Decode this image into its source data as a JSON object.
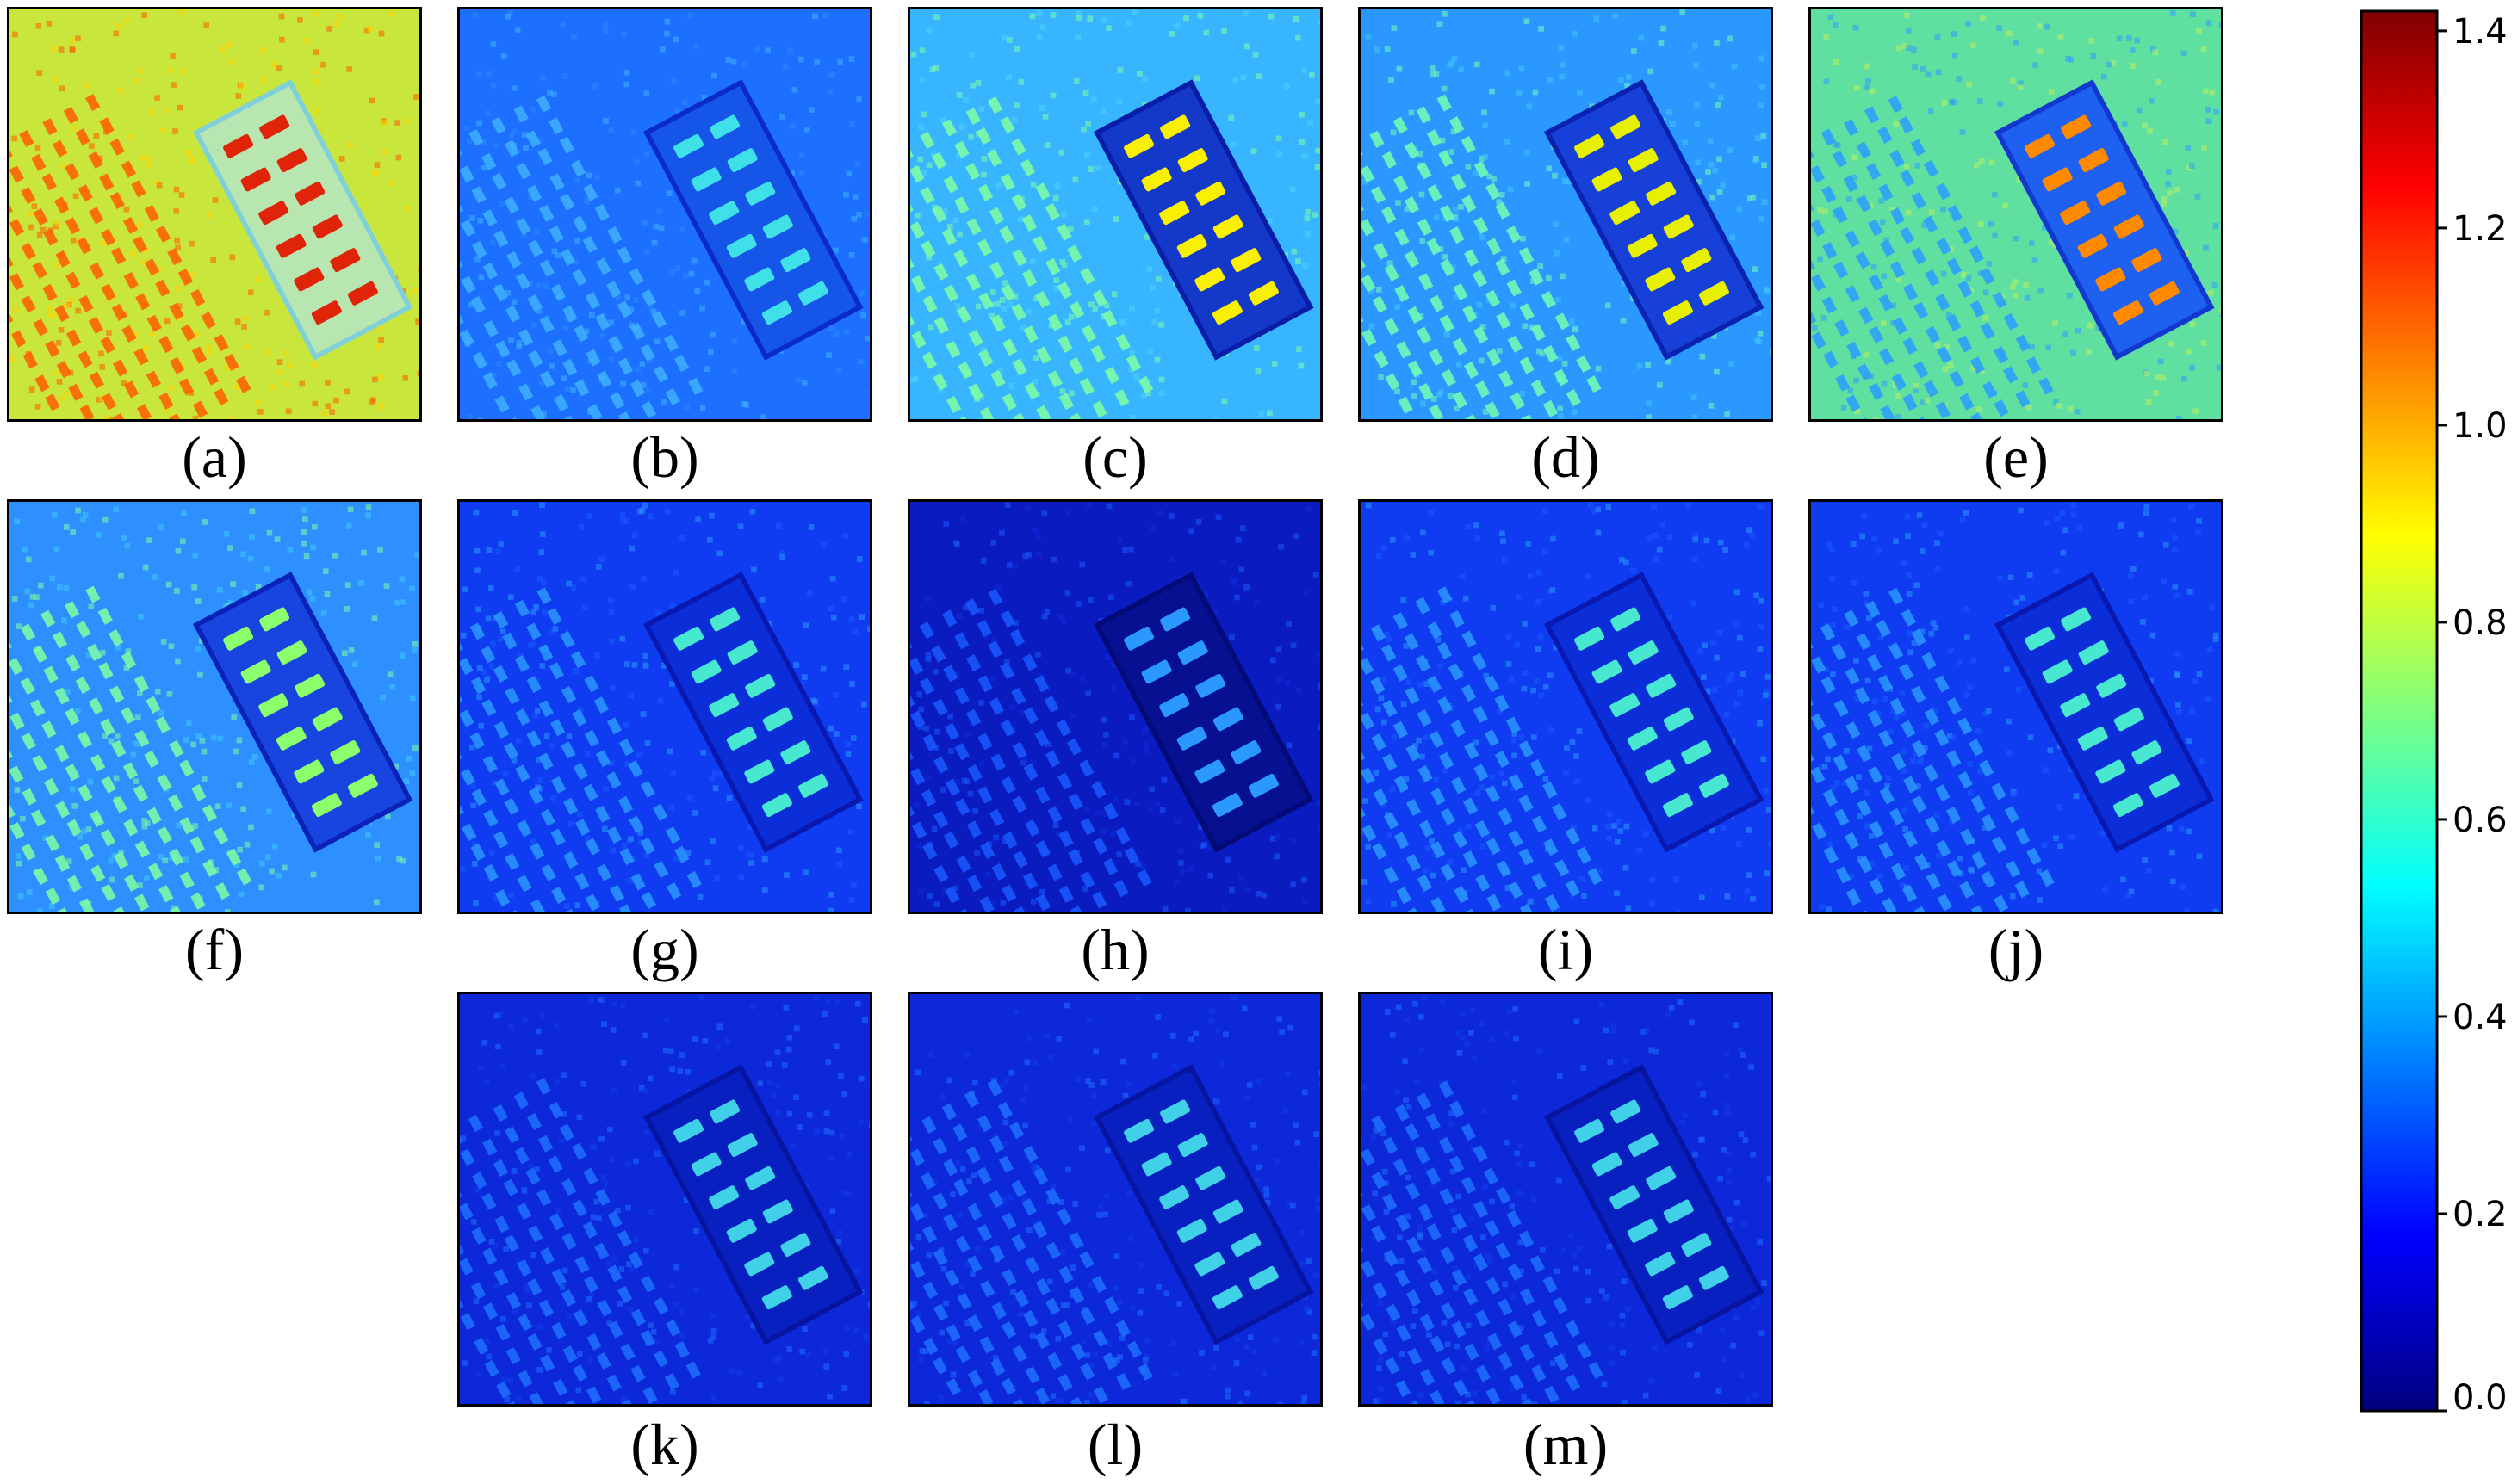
{
  "panels": [
    {
      "label": "(a)",
      "style": "warm"
    },
    {
      "label": "(b)",
      "style": "blue-med"
    },
    {
      "label": "(c)",
      "style": "cyan-bright"
    },
    {
      "label": "(d)",
      "style": "cyan-med"
    },
    {
      "label": "(e)",
      "style": "noisy-green"
    },
    {
      "label": "(f)",
      "style": "noisy-blue"
    },
    {
      "label": "(g)",
      "style": "blue-low"
    },
    {
      "label": "(h)",
      "style": "dark"
    },
    {
      "label": "(i)",
      "style": "blue-low"
    },
    {
      "label": "(j)",
      "style": "blue-low"
    },
    {
      "label": "(k)",
      "style": "dark-blue"
    },
    {
      "label": "(l)",
      "style": "dark-blue"
    },
    {
      "label": "(m)",
      "style": "dark-blue"
    }
  ],
  "colorbar": {
    "min": 0.0,
    "max": 1.42,
    "colormap": "jet",
    "ticks": [
      "0.0",
      "0.2",
      "0.4",
      "0.6",
      "0.8",
      "1.0",
      "1.2",
      "1.4"
    ]
  },
  "colors": {
    "jet_stops": [
      "#00007f",
      "#0000ff",
      "#007fff",
      "#00ffff",
      "#7fff7f",
      "#ffff00",
      "#ff7f00",
      "#ff0000",
      "#7f0000"
    ]
  }
}
